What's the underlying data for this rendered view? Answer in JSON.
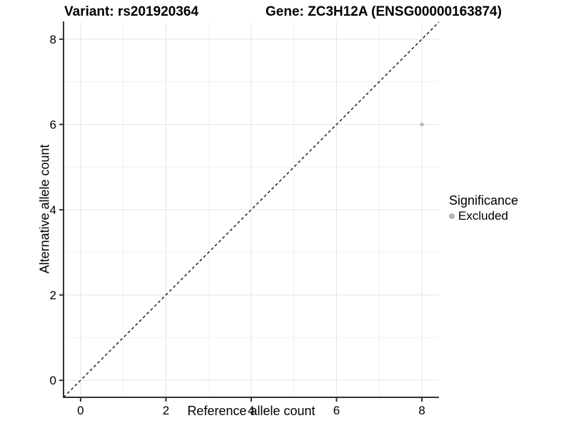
{
  "chart_data": {
    "type": "scatter",
    "titles": {
      "variant": "Variant: rs201920364",
      "gene": "Gene: ZC3H12A (ENSG00000163874)"
    },
    "xlabel": "Reference allele count",
    "ylabel": "Alternative allele count",
    "xlim": [
      -0.4,
      8.4
    ],
    "ylim": [
      -0.4,
      8.4
    ],
    "x_ticks": [
      0,
      2,
      4,
      6,
      8
    ],
    "y_ticks": [
      0,
      2,
      4,
      6,
      8
    ],
    "x_minor_ticks": [
      1,
      3,
      5,
      7
    ],
    "y_minor_ticks": [
      1,
      3,
      5,
      7
    ],
    "grid": true,
    "reference_line": {
      "kind": "identity",
      "style": "dashed",
      "color": "#000000"
    },
    "series": [
      {
        "name": "Excluded",
        "color": "#b5b5b5",
        "points": [
          {
            "x": 8,
            "y": 6
          }
        ]
      }
    ],
    "legend": {
      "title": "Significance",
      "position": "right",
      "items": [
        {
          "label": "Excluded",
          "color": "#b5b5b5"
        }
      ]
    },
    "colors": {
      "major_grid": "#e4e4e4",
      "minor_grid": "#f0f0f0",
      "axis_line": "#333333",
      "tick_mark": "#333333",
      "tick_label": "#000000",
      "background": "#ffffff"
    }
  }
}
